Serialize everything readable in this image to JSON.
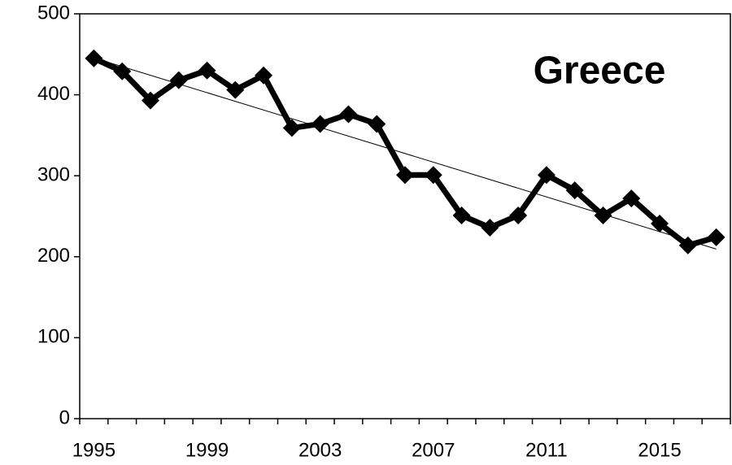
{
  "chart_data": {
    "type": "line",
    "title": "Greece",
    "categories": [
      "1995",
      null,
      null,
      null,
      "1999",
      null,
      null,
      null,
      "2003",
      null,
      null,
      null,
      "2007",
      null,
      null,
      null,
      "2011",
      null,
      null,
      null,
      "2015",
      null,
      null
    ],
    "series": [
      {
        "name": "Greece",
        "color": "#000000",
        "values": [
          445,
          429,
          393,
          418,
          430,
          406,
          424,
          359,
          364,
          376,
          364,
          301,
          301,
          251,
          236,
          251,
          301,
          282,
          251,
          272,
          241,
          214,
          224
        ]
      }
    ],
    "ylim": [
      0,
      500
    ],
    "yticks": [
      0,
      100,
      200,
      300,
      400,
      500
    ],
    "trendline": true,
    "grid": false
  }
}
